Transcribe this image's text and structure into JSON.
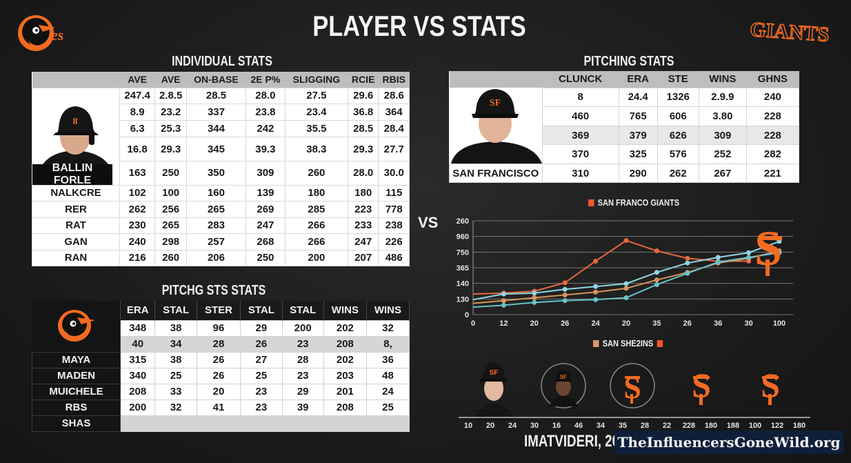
{
  "header": {
    "title": "PLAYER VS STATS",
    "left_logo": "orioles-bird-logo",
    "right_logo": "giants-wordmark",
    "right_logo_text": "GIANTS"
  },
  "individual_stats": {
    "title": "INDIVIDUAL STATS",
    "player_name": "BALLIN FORLE",
    "columns": [
      "AVE",
      "AVE",
      "ON-BASE",
      "2E P%",
      "SLIGGING",
      "RCIE",
      "RBIS"
    ],
    "photo_rows": [
      [
        "247.4",
        "2.8.5",
        "28.5",
        "28.0",
        "27.5",
        "29.6",
        "28.6"
      ],
      [
        "8.9",
        "23.2",
        "337",
        "23.8",
        "23.4",
        "36.8",
        "364"
      ],
      [
        "6.3",
        "25.3",
        "344",
        "242",
        "35.5",
        "28.5",
        "28.4"
      ],
      [
        "16.8",
        "29.3",
        "345",
        "39.3",
        "38.3",
        "29.3",
        "27.7"
      ],
      [
        "163",
        "250",
        "350",
        "309",
        "260",
        "28.0",
        "30.0"
      ]
    ],
    "rows": [
      {
        "label": "NALKCRE",
        "values": [
          "102",
          "100",
          "160",
          "139",
          "180",
          "180",
          "115"
        ]
      },
      {
        "label": "RER",
        "values": [
          "262",
          "256",
          "265",
          "269",
          "285",
          "223",
          "778"
        ]
      },
      {
        "label": "RAT",
        "values": [
          "230",
          "265",
          "283",
          "247",
          "266",
          "233",
          "238"
        ]
      },
      {
        "label": "GAN",
        "values": [
          "240",
          "298",
          "257",
          "268",
          "266",
          "247",
          "226"
        ]
      },
      {
        "label": "RAN",
        "values": [
          "216",
          "260",
          "206",
          "250",
          "200",
          "207",
          "486"
        ]
      }
    ]
  },
  "pitching_sts_stats": {
    "title": "PITCHG STS STATS",
    "columns": [
      "ERA",
      "STAL",
      "STER",
      "STAL",
      "STAL",
      "WINS",
      "WINS"
    ],
    "logo_rows": [
      [
        "348",
        "38",
        "96",
        "29",
        "200",
        "202",
        "32"
      ],
      [
        "40",
        "34",
        "28",
        "26",
        "23",
        "208",
        "8,"
      ]
    ],
    "rows": [
      {
        "label": "MAYA",
        "values": [
          "315",
          "38",
          "26",
          "27",
          "28",
          "202",
          "36"
        ]
      },
      {
        "label": "MADEN",
        "values": [
          "340",
          "25",
          "26",
          "25",
          "23",
          "203",
          "48"
        ]
      },
      {
        "label": "MUICHELE",
        "values": [
          "208",
          "33",
          "20",
          "23",
          "29",
          "201",
          "24"
        ]
      },
      {
        "label": "RBS",
        "values": [
          "200",
          "32",
          "41",
          "23",
          "39",
          "208",
          "25"
        ]
      },
      {
        "label": "SHAS",
        "values": []
      }
    ]
  },
  "pitching_stats": {
    "title": "PITCHING STATS",
    "columns": [
      "CLUNCK",
      "ERA",
      "STE",
      "WINS",
      "GHNS"
    ],
    "team_label": "SAN FRANCISCO",
    "photo_rows": [
      [
        "8",
        "24.4",
        "1326",
        "2.9.9",
        "240"
      ],
      [
        "460",
        "765",
        "606",
        "3.80",
        "228"
      ],
      [
        "369",
        "379",
        "626",
        "309",
        "228"
      ],
      [
        "370",
        "325",
        "576",
        "252",
        "282"
      ]
    ],
    "team_row": [
      "310",
      "290",
      "262",
      "267",
      "221"
    ]
  },
  "vs_label": "VS",
  "chart_data": {
    "type": "line",
    "title": "",
    "legend_top": "SAN FRANCO GIANTS",
    "legend_bottom": "SAN SHE2INS",
    "x": [
      "0",
      "12",
      "20",
      "26",
      "24",
      "20",
      "35",
      "26",
      "36",
      "30",
      "100"
    ],
    "ytick_labels": [
      "0",
      "130",
      "140",
      "365",
      "750",
      "960",
      "260"
    ],
    "series": [
      {
        "name": "orange-peak",
        "color": "#e8693a",
        "values": [
          0.22,
          0.23,
          0.25,
          0.34,
          0.57,
          0.79,
          0.68,
          0.6,
          0.57,
          0.57,
          null
        ]
      },
      {
        "name": "light-blue-upper",
        "color": "#8ed6e6",
        "values": [
          0.16,
          0.22,
          0.23,
          0.27,
          0.3,
          0.33,
          0.45,
          0.55,
          0.61,
          0.66,
          0.78
        ]
      },
      {
        "name": "tan-middle",
        "color": "#d8955c",
        "values": [
          0.12,
          0.15,
          0.18,
          0.21,
          0.24,
          0.28,
          0.37,
          0.45,
          0.55,
          0.6,
          0.68
        ]
      },
      {
        "name": "teal-lower",
        "color": "#66c3c9",
        "values": [
          0.08,
          0.1,
          0.13,
          0.15,
          0.16,
          0.18,
          0.32,
          0.44,
          0.56,
          0.61,
          0.66
        ]
      }
    ],
    "grid": true,
    "legend_position": "top-right"
  },
  "player_row": {
    "items": [
      "player-headshot-1",
      "player-headshot-2-circle",
      "sf-logo-circle",
      "sf-logo",
      "sf-logo"
    ],
    "axis_labels": [
      "10",
      "20",
      "24",
      "30",
      "16",
      "46",
      "34",
      "35",
      "28",
      "22",
      "228",
      "180",
      "188",
      "100",
      "122",
      "180"
    ]
  },
  "footer": {
    "caption": "IMATVIDERI, 20",
    "watermark": "TheInfluencersGoneWild.org"
  },
  "colors": {
    "background": "#1c1c1c",
    "orange": "#f26b21",
    "header_gray": "#bdbdbd"
  }
}
